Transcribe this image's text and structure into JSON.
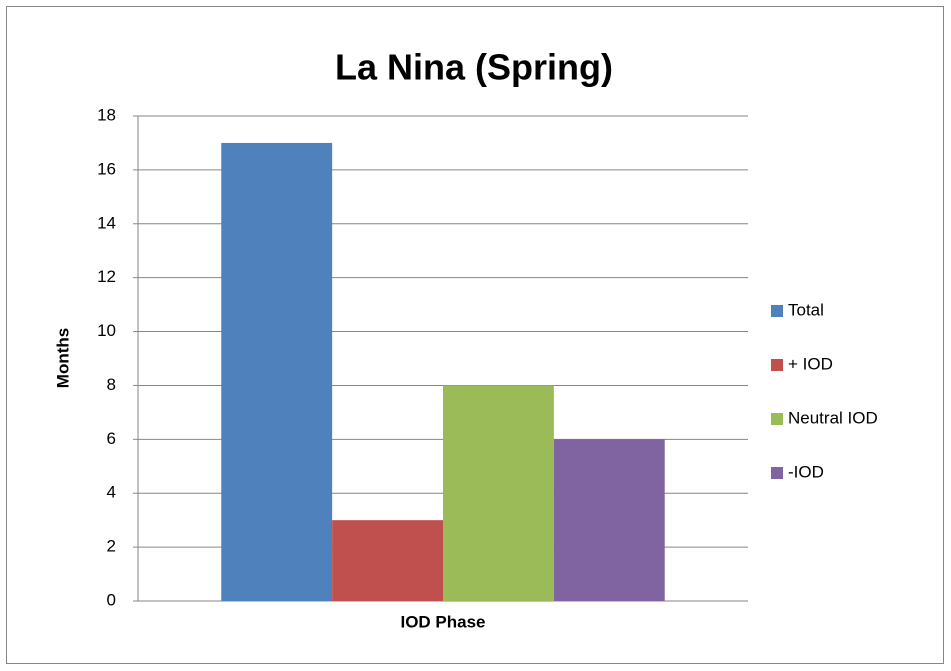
{
  "chart_data": {
    "type": "bar",
    "title": "La Nina (Spring)",
    "categories": [
      null
    ],
    "series": [
      {
        "name": "Total",
        "color": "#4f81bd",
        "values": [
          17
        ]
      },
      {
        "name": "+ IOD",
        "color": "#c0504d",
        "values": [
          3
        ]
      },
      {
        "name": "Neutral IOD",
        "color": "#9bbb59",
        "values": [
          8
        ]
      },
      {
        "name": "-IOD",
        "color": "#8064a2",
        "values": [
          6
        ]
      }
    ],
    "x_label": "IOD Phase",
    "y_label": "Months",
    "ylim": [
      0,
      18
    ],
    "yticks": [
      0,
      2,
      4,
      6,
      8,
      10,
      12,
      14,
      16,
      18
    ],
    "grid": true,
    "legend": "right"
  }
}
